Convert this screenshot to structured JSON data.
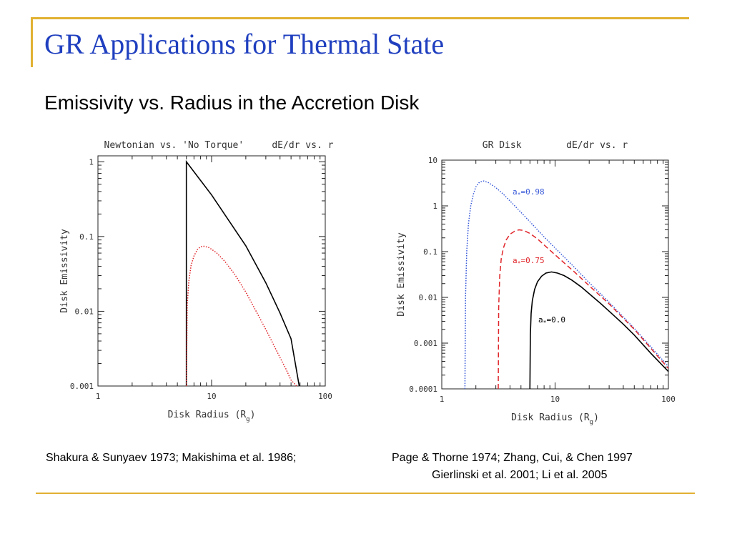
{
  "slide": {
    "title": "GR Applications for Thermal State",
    "subtitle": "Emissivity vs. Radius in the Accretion Disk",
    "citation_left": "Shakura & Sunyaev 1973; Makishima et al. 1986;",
    "citation_right_line1": "Page & Thorne 1974;  Zhang, Cui, & Chen 1997",
    "citation_right_line2": "Gierlinski et al. 2001;  Li et al. 2005",
    "colors": {
      "title": "#1f3fbf",
      "accent_rule": "#e2b133"
    }
  },
  "chart_data": [
    {
      "type": "line",
      "title": "Newtonian vs. 'No Torque'     dE/dr vs. r",
      "xlabel": "Disk Radius (R",
      "xlabel_sub": "g",
      "xlabel_close": ")",
      "ylabel": "Disk Emissivity",
      "xscale": "log",
      "yscale": "log",
      "xlim": [
        1,
        100
      ],
      "ylim": [
        0.001,
        1.2
      ],
      "xticks": [
        1,
        10,
        100
      ],
      "xtick_labels": [
        "1",
        "10",
        "100"
      ],
      "yticks": [
        1,
        0.1,
        0.01,
        0.001
      ],
      "ytick_labels": [
        "1",
        "0.1",
        "0.01",
        "0.001"
      ],
      "series": [
        {
          "color": "#000000",
          "style": "solid",
          "x": [
            6,
            6,
            10,
            20,
            30,
            40,
            50,
            59
          ],
          "y": [
            0.001,
            1.0,
            0.36,
            0.075,
            0.024,
            0.0095,
            0.0043,
            0.001
          ]
        },
        {
          "color": "#e0262b",
          "style": "dotted",
          "x": [
            6,
            6.1,
            6.3,
            6.6,
            7,
            7.5,
            8,
            8.6,
            9.5,
            11,
            13,
            16,
            20,
            25,
            30,
            35,
            40,
            45,
            50,
            56
          ],
          "y": [
            0.001,
            0.012,
            0.025,
            0.041,
            0.055,
            0.067,
            0.073,
            0.074,
            0.071,
            0.061,
            0.047,
            0.031,
            0.018,
            0.0096,
            0.0057,
            0.0036,
            0.0024,
            0.0017,
            0.0012,
            0.001
          ]
        }
      ]
    },
    {
      "type": "line",
      "title": "GR Disk        dE/dr vs. r",
      "xlabel": "Disk Radius (R",
      "xlabel_sub": "g",
      "xlabel_close": ")",
      "ylabel": "Disk Emissivity",
      "xscale": "log",
      "yscale": "log",
      "xlim": [
        1,
        100
      ],
      "ylim": [
        0.0001,
        10
      ],
      "xticks": [
        1,
        10,
        100
      ],
      "xtick_labels": [
        "1",
        "10",
        "100"
      ],
      "yticks": [
        10,
        1,
        0.1,
        0.01,
        0.001,
        0.0001
      ],
      "ytick_labels": [
        "10",
        "1",
        "0.1",
        "0.01",
        "0.001",
        "0.0001"
      ],
      "series": [
        {
          "name": "a",
          "name_sub": "*",
          "name_rest": "=0.98",
          "color": "#3a5bd9",
          "style": "dotted",
          "x": [
            1.6,
            1.62,
            1.66,
            1.72,
            1.8,
            1.9,
            2.0,
            2.15,
            2.35,
            2.6,
            3.0,
            3.5,
            4.5,
            6,
            8,
            10,
            15,
            20,
            30,
            50,
            100
          ],
          "y": [
            0.0001,
            0.01,
            0.1,
            0.4,
            1.0,
            1.8,
            2.6,
            3.3,
            3.5,
            3.2,
            2.5,
            1.8,
            0.95,
            0.45,
            0.21,
            0.12,
            0.044,
            0.021,
            0.0078,
            0.0021,
            0.00031
          ]
        },
        {
          "name": "a",
          "name_sub": "*",
          "name_rest": "=0.75",
          "color": "#e0262b",
          "style": "dashed",
          "x": [
            3.15,
            3.18,
            3.25,
            3.35,
            3.5,
            3.7,
            4.0,
            4.4,
            4.8,
            5.3,
            6,
            7,
            8,
            10,
            15,
            20,
            30,
            50,
            100
          ],
          "y": [
            0.0001,
            0.006,
            0.03,
            0.07,
            0.12,
            0.18,
            0.24,
            0.28,
            0.3,
            0.29,
            0.25,
            0.19,
            0.14,
            0.085,
            0.035,
            0.018,
            0.0072,
            0.002,
            0.00028
          ]
        },
        {
          "name": "a",
          "name_sub": "*",
          "name_rest": "=0.0",
          "color": "#000000",
          "style": "solid",
          "x": [
            6.0,
            6.05,
            6.15,
            6.3,
            6.6,
            7.0,
            7.6,
            8.3,
            9.3,
            10.5,
            12,
            14,
            17,
            20,
            25,
            30,
            40,
            50,
            70,
            100
          ],
          "y": [
            0.0001,
            0.0015,
            0.0045,
            0.0085,
            0.015,
            0.022,
            0.029,
            0.034,
            0.036,
            0.034,
            0.03,
            0.024,
            0.017,
            0.012,
            0.0075,
            0.005,
            0.0026,
            0.0015,
            0.0006,
            0.00024
          ]
        }
      ]
    }
  ]
}
